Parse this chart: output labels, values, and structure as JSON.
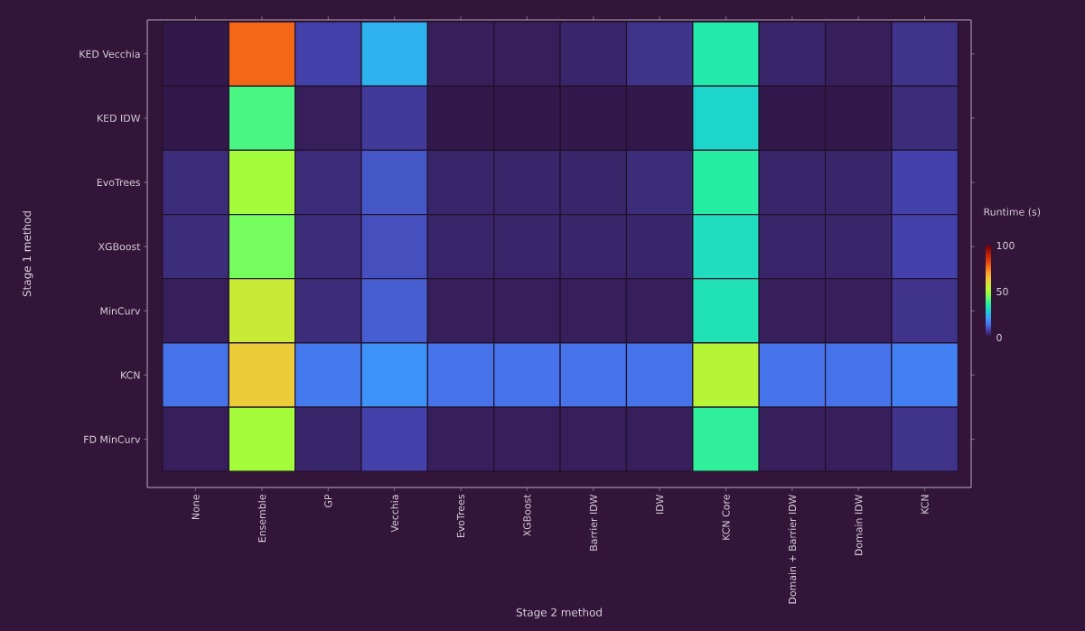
{
  "chart_data": {
    "type": "heatmap",
    "xlabel": "Stage 2 method",
    "ylabel": "Stage 1 method",
    "clabel": "Runtime (s)",
    "categories": [
      "None",
      "Ensemble",
      "GP",
      "Vecchia",
      "EvoTrees",
      "XGBoost",
      "Barrier IDW",
      "IDW",
      "KCN Core",
      "Domain + Barrier IDW",
      "Domain IDW",
      "KCN"
    ],
    "y_categories": [
      "KED Vecchia",
      "KED IDW",
      "EvoTrees",
      "XGBoost",
      "MinCurv",
      "KCN",
      "FD MinCurv"
    ],
    "cells": [
      [
        1,
        78,
        7,
        24,
        2,
        2,
        3,
        5,
        35,
        3,
        2,
        5
      ],
      [
        1,
        40,
        2,
        6,
        1,
        1,
        1,
        1,
        30,
        1,
        1,
        4
      ],
      [
        4,
        50,
        4,
        10,
        3,
        3,
        3,
        4,
        36,
        3,
        3,
        7
      ],
      [
        4,
        45,
        4,
        9,
        3,
        3,
        3,
        3,
        32,
        3,
        3,
        7
      ],
      [
        2,
        56,
        4,
        11,
        2,
        2,
        2,
        2,
        33,
        2,
        2,
        5
      ],
      [
        14,
        63,
        15,
        19,
        14,
        14,
        14,
        14,
        53,
        14,
        14,
        16
      ],
      [
        2,
        50,
        3,
        7,
        2,
        2,
        2,
        2,
        37,
        2,
        2,
        5
      ]
    ],
    "clim": [
      0,
      100
    ],
    "cticks": [
      0,
      50,
      100
    ]
  }
}
